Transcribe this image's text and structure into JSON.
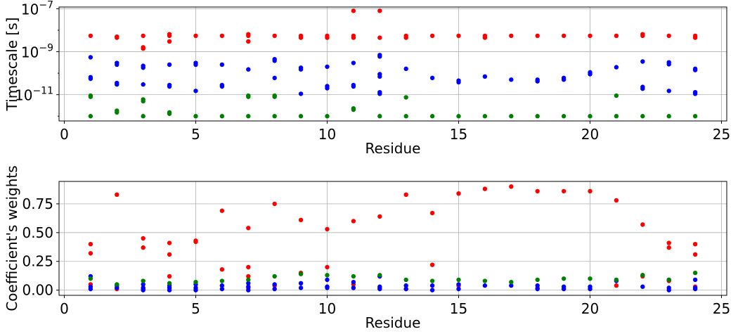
{
  "chart_data": [
    {
      "type": "scatter",
      "xlabel": "Residue",
      "ylabel": "Timescale [s]",
      "yscale": "log",
      "xlim": [
        -0.2,
        25.2
      ],
      "ylim": [
        6e-13,
        1.2e-07
      ],
      "grid": true,
      "x_ticks": [
        "0",
        "5",
        "10",
        "15",
        "20",
        "25"
      ],
      "y_ticks": [
        {
          "base": "10",
          "exp": "−7",
          "value": 1e-07
        },
        {
          "base": "10",
          "exp": "−9",
          "value": 1e-09
        },
        {
          "base": "10",
          "exp": "−11",
          "value": 1e-11
        }
      ],
      "series": [
        {
          "color": "#ff0000",
          "points": [
            [
              1,
              5.5e-09
            ],
            [
              2,
              5e-09
            ],
            [
              2,
              4.5e-09
            ],
            [
              3,
              5.5e-09
            ],
            [
              3,
              1.6e-09
            ],
            [
              3,
              1.4e-09
            ],
            [
              4,
              6.5e-09
            ],
            [
              4,
              5.5e-09
            ],
            [
              4,
              3e-09
            ],
            [
              5,
              5.5e-09
            ],
            [
              6,
              5.5e-09
            ],
            [
              7,
              6.5e-09
            ],
            [
              7,
              5.5e-09
            ],
            [
              7,
              3e-09
            ],
            [
              8,
              5.5e-09
            ],
            [
              9,
              5.5e-09
            ],
            [
              9,
              4.5e-09
            ],
            [
              10,
              5.5e-09
            ],
            [
              10,
              4.5e-09
            ],
            [
              11,
              8e-08
            ],
            [
              11,
              5.5e-09
            ],
            [
              11,
              4.5e-09
            ],
            [
              12,
              8e-08
            ],
            [
              12,
              4.5e-09
            ],
            [
              13,
              5.5e-09
            ],
            [
              13,
              4.5e-09
            ],
            [
              14,
              5.5e-09
            ],
            [
              15,
              5.5e-09
            ],
            [
              16,
              5.5e-09
            ],
            [
              16,
              4.5e-09
            ],
            [
              17,
              5.5e-09
            ],
            [
              18,
              5.5e-09
            ],
            [
              19,
              5.5e-09
            ],
            [
              20,
              5.5e-09
            ],
            [
              21,
              5.5e-09
            ],
            [
              22,
              6.5e-09
            ],
            [
              22,
              5.5e-09
            ],
            [
              23,
              5.5e-09
            ],
            [
              24,
              5.5e-09
            ],
            [
              24,
              4.5e-09
            ]
          ]
        },
        {
          "color": "#0000ff",
          "points": [
            [
              1,
              5.5e-10
            ],
            [
              1,
              6.5e-11
            ],
            [
              1,
              5.5e-11
            ],
            [
              2,
              3e-10
            ],
            [
              2,
              2.5e-10
            ],
            [
              2,
              3.5e-11
            ],
            [
              2,
              3e-11
            ],
            [
              3,
              2.2e-10
            ],
            [
              3,
              1.8e-10
            ],
            [
              3,
              3e-11
            ],
            [
              4,
              2.5e-10
            ],
            [
              4,
              2.8e-11
            ],
            [
              4,
              2.4e-11
            ],
            [
              5,
              3e-10
            ],
            [
              5,
              2.5e-10
            ],
            [
              5,
              1.5e-11
            ],
            [
              6,
              2.5e-10
            ],
            [
              6,
              2.8e-11
            ],
            [
              6,
              2.4e-11
            ],
            [
              7,
              1.5e-10
            ],
            [
              8,
              4.5e-10
            ],
            [
              8,
              3.8e-10
            ],
            [
              8,
              6e-11
            ],
            [
              9,
              1.8e-10
            ],
            [
              9,
              1.5e-10
            ],
            [
              9,
              1.1e-11
            ],
            [
              10,
              2e-10
            ],
            [
              10,
              2.5e-11
            ],
            [
              10,
              2e-11
            ],
            [
              11,
              3e-10
            ],
            [
              11,
              2.8e-11
            ],
            [
              11,
              2.4e-11
            ],
            [
              12,
              7e-10
            ],
            [
              12,
              6e-10
            ],
            [
              12,
              9e-11
            ],
            [
              12,
              7e-11
            ],
            [
              12,
              1.3e-11
            ],
            [
              12,
              1.1e-11
            ],
            [
              13,
              1.6e-10
            ],
            [
              14,
              6e-11
            ],
            [
              15,
              4.5e-11
            ],
            [
              15,
              3.8e-11
            ],
            [
              16,
              7e-11
            ],
            [
              17,
              5e-11
            ],
            [
              18,
              5e-11
            ],
            [
              18,
              4.2e-11
            ],
            [
              19,
              6e-11
            ],
            [
              19,
              5e-11
            ],
            [
              20,
              1.1e-10
            ],
            [
              20,
              9e-11
            ],
            [
              21,
              1.9e-10
            ],
            [
              22,
              3.5e-10
            ],
            [
              22,
              2.3e-11
            ],
            [
              22,
              1.9e-11
            ],
            [
              23,
              3.2e-10
            ],
            [
              23,
              2.6e-10
            ],
            [
              23,
              1.5e-11
            ],
            [
              24,
              1.6e-10
            ],
            [
              24,
              1.4e-10
            ],
            [
              24,
              1.3e-11
            ],
            [
              24,
              1.1e-11
            ]
          ]
        },
        {
          "color": "#008000",
          "points": [
            [
              1,
              9e-12
            ],
            [
              1,
              8e-12
            ],
            [
              1,
              1e-12
            ],
            [
              2,
              1.8e-12
            ],
            [
              2,
              1.5e-12
            ],
            [
              3,
              6e-12
            ],
            [
              3,
              5e-12
            ],
            [
              3,
              1e-12
            ],
            [
              4,
              1.5e-12
            ],
            [
              4,
              1.3e-12
            ],
            [
              5,
              1e-12
            ],
            [
              6,
              1e-12
            ],
            [
              7,
              9e-12
            ],
            [
              7,
              8e-12
            ],
            [
              7,
              1e-12
            ],
            [
              8,
              9e-12
            ],
            [
              8,
              8e-12
            ],
            [
              8,
              1e-12
            ],
            [
              9,
              1e-12
            ],
            [
              10,
              1e-12
            ],
            [
              11,
              2.3e-12
            ],
            [
              11,
              2e-12
            ],
            [
              12,
              1e-12
            ],
            [
              13,
              7.5e-12
            ],
            [
              13,
              1e-12
            ],
            [
              14,
              1e-12
            ],
            [
              15,
              1e-12
            ],
            [
              16,
              1e-12
            ],
            [
              17,
              1e-12
            ],
            [
              18,
              1e-12
            ],
            [
              19,
              1e-12
            ],
            [
              20,
              1e-12
            ],
            [
              21,
              9e-12
            ],
            [
              21,
              1e-12
            ],
            [
              22,
              1e-12
            ],
            [
              23,
              1e-12
            ],
            [
              24,
              1e-12
            ]
          ]
        }
      ]
    },
    {
      "type": "scatter",
      "xlabel": "Residue",
      "ylabel": "Coefficient's weights",
      "xlim": [
        -0.2,
        25.2
      ],
      "ylim": [
        -0.045,
        0.945
      ],
      "grid": true,
      "x_ticks": [
        "0",
        "5",
        "10",
        "15",
        "20",
        "25"
      ],
      "y_ticks": [
        "0.00",
        "0.25",
        "0.50",
        "0.75"
      ],
      "series": [
        {
          "color": "#ff0000",
          "points": [
            [
              1,
              0.4
            ],
            [
              1,
              0.32
            ],
            [
              1,
              0.05
            ],
            [
              2,
              0.83
            ],
            [
              2,
              0.02
            ],
            [
              2,
              0.01
            ],
            [
              3,
              0.45
            ],
            [
              3,
              0.37
            ],
            [
              3,
              0.02
            ],
            [
              3,
              0.01
            ],
            [
              4,
              0.41
            ],
            [
              4,
              0.31
            ],
            [
              4,
              0.12
            ],
            [
              4,
              0.02
            ],
            [
              5,
              0.43
            ],
            [
              5,
              0.42
            ],
            [
              6,
              0.69
            ],
            [
              6,
              0.18
            ],
            [
              7,
              0.54
            ],
            [
              7,
              0.2
            ],
            [
              7,
              0.12
            ],
            [
              7,
              0.02
            ],
            [
              8,
              0.75
            ],
            [
              8,
              0.04
            ],
            [
              9,
              0.61
            ],
            [
              9,
              0.15
            ],
            [
              10,
              0.53
            ],
            [
              10,
              0.2
            ],
            [
              10,
              0.03
            ],
            [
              11,
              0.6
            ],
            [
              11,
              0.05
            ],
            [
              11,
              0.02
            ],
            [
              12,
              0.64
            ],
            [
              12,
              0.12
            ],
            [
              12,
              0.02
            ],
            [
              13,
              0.83
            ],
            [
              13,
              0.01
            ],
            [
              14,
              0.67
            ],
            [
              14,
              0.22
            ],
            [
              15,
              0.84
            ],
            [
              15,
              0.04
            ],
            [
              16,
              0.88
            ],
            [
              17,
              0.9
            ],
            [
              18,
              0.86
            ],
            [
              18,
              0.02
            ],
            [
              19,
              0.86
            ],
            [
              20,
              0.86
            ],
            [
              21,
              0.78
            ],
            [
              21,
              0.04
            ],
            [
              22,
              0.57
            ],
            [
              22,
              0.12
            ],
            [
              23,
              0.41
            ],
            [
              23,
              0.37
            ],
            [
              23,
              0.08
            ],
            [
              24,
              0.4
            ],
            [
              24,
              0.31
            ],
            [
              24,
              0.03
            ]
          ]
        },
        {
          "color": "#0000ff",
          "points": [
            [
              1,
              0.12
            ],
            [
              1,
              0.03
            ],
            [
              1,
              0.01
            ],
            [
              2,
              0.04
            ],
            [
              2,
              0.02
            ],
            [
              3,
              0.05
            ],
            [
              3,
              0.02
            ],
            [
              3,
              0.0
            ],
            [
              4,
              0.04
            ],
            [
              4,
              0.02
            ],
            [
              4,
              0.0
            ],
            [
              5,
              0.05
            ],
            [
              5,
              0.02
            ],
            [
              5,
              0.0
            ],
            [
              6,
              0.04
            ],
            [
              6,
              0.01
            ],
            [
              7,
              0.06
            ],
            [
              7,
              0.03
            ],
            [
              7,
              0.0
            ],
            [
              8,
              0.05
            ],
            [
              8,
              0.01
            ],
            [
              9,
              0.06
            ],
            [
              9,
              0.02
            ],
            [
              10,
              0.09
            ],
            [
              10,
              0.03
            ],
            [
              10,
              0.02
            ],
            [
              11,
              0.07
            ],
            [
              11,
              0.02
            ],
            [
              12,
              0.12
            ],
            [
              12,
              0.03
            ],
            [
              12,
              0.01
            ],
            [
              13,
              0.04
            ],
            [
              13,
              0.01
            ],
            [
              14,
              0.04
            ],
            [
              14,
              0.0
            ],
            [
              15,
              0.05
            ],
            [
              15,
              0.01
            ],
            [
              16,
              0.04
            ],
            [
              17,
              0.04
            ],
            [
              18,
              0.04
            ],
            [
              18,
              0.01
            ],
            [
              19,
              0.03
            ],
            [
              19,
              0.01
            ],
            [
              20,
              0.03
            ],
            [
              20,
              0.01
            ],
            [
              21,
              0.08
            ],
            [
              22,
              0.13
            ],
            [
              22,
              0.03
            ],
            [
              23,
              0.09
            ],
            [
              23,
              0.02
            ],
            [
              23,
              0.0
            ],
            [
              24,
              0.09
            ],
            [
              24,
              0.02
            ],
            [
              24,
              0.01
            ]
          ]
        },
        {
          "color": "#008000",
          "points": [
            [
              1,
              0.1
            ],
            [
              2,
              0.05
            ],
            [
              3,
              0.08
            ],
            [
              4,
              0.06
            ],
            [
              5,
              0.07
            ],
            [
              6,
              0.08
            ],
            [
              7,
              0.09
            ],
            [
              8,
              0.12
            ],
            [
              9,
              0.14
            ],
            [
              10,
              0.13
            ],
            [
              11,
              0.12
            ],
            [
              12,
              0.13
            ],
            [
              13,
              0.09
            ],
            [
              14,
              0.08
            ],
            [
              15,
              0.09
            ],
            [
              16,
              0.08
            ],
            [
              17,
              0.07
            ],
            [
              18,
              0.09
            ],
            [
              19,
              0.1
            ],
            [
              20,
              0.1
            ],
            [
              21,
              0.09
            ],
            [
              22,
              0.13
            ],
            [
              23,
              0.09
            ],
            [
              24,
              0.15
            ]
          ]
        }
      ]
    }
  ]
}
